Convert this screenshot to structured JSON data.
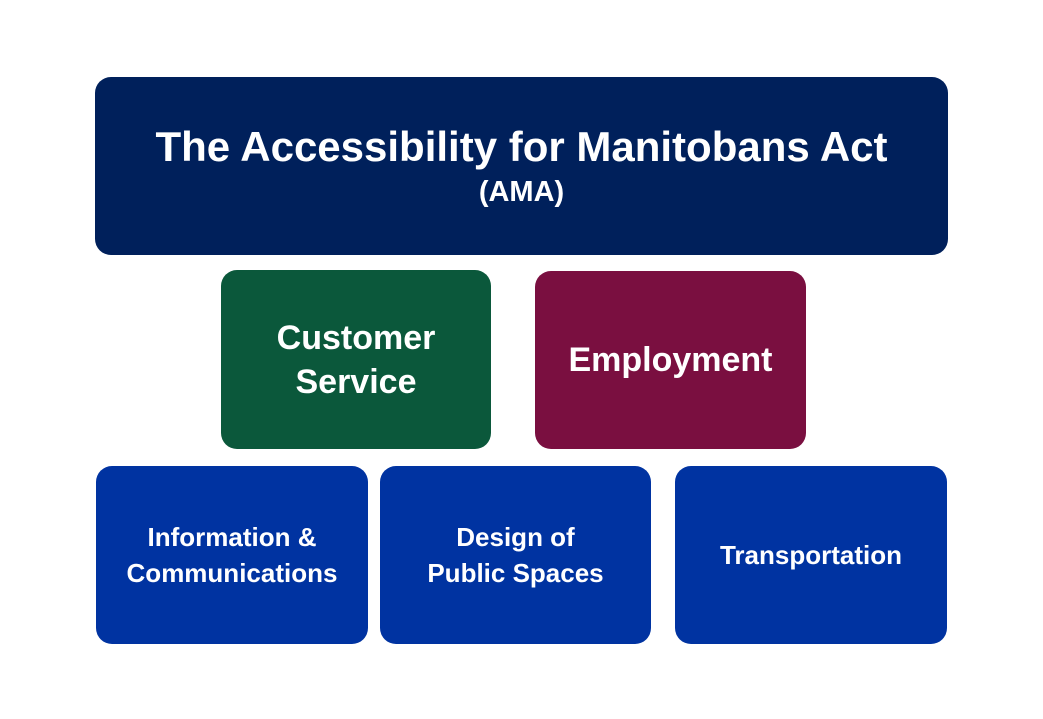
{
  "act": {
    "title": "The Accessibility for Manitobans Act",
    "subtitle": "(AMA)"
  },
  "standards_row_1": [
    {
      "label": "Customer\nService"
    },
    {
      "label": "Employment"
    }
  ],
  "standards_row_2": [
    {
      "label": "Information &\nCommunications"
    },
    {
      "label": "Design of\nPublic Spaces"
    },
    {
      "label": "Transportation"
    }
  ],
  "colors": {
    "act": "#00205b",
    "customer_service": "#0b583b",
    "employment": "#7a0f40",
    "standards_blue": "#0033a1"
  }
}
